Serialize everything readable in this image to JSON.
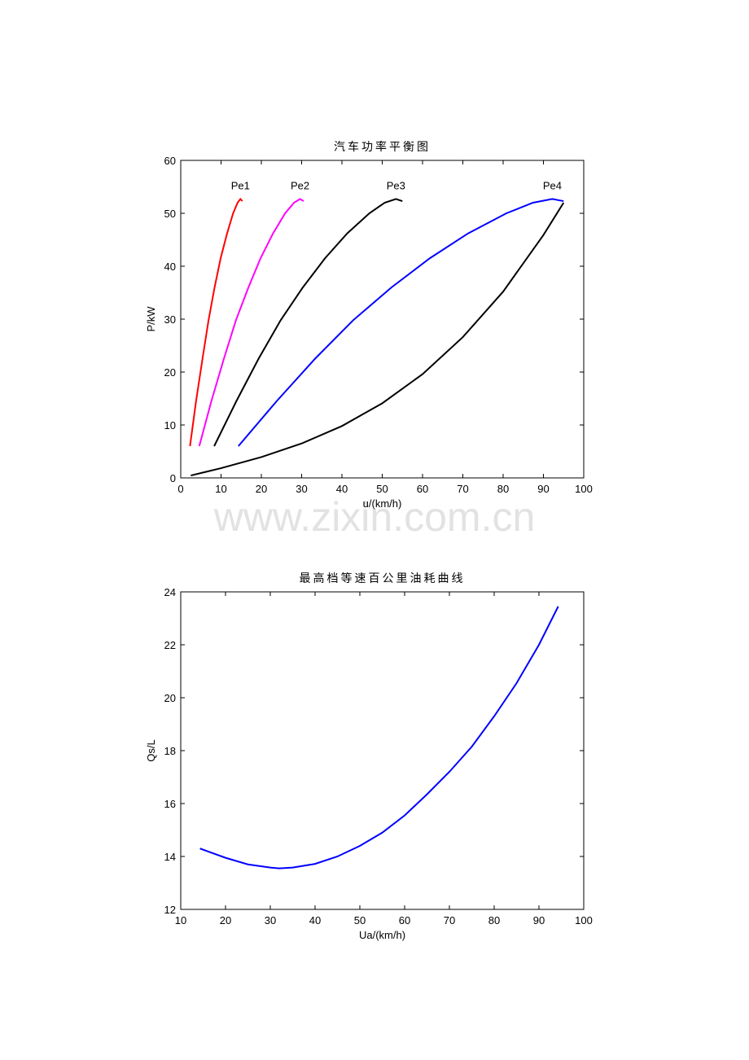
{
  "watermark": "www.zixin.com.cn",
  "chart_data": [
    {
      "type": "line",
      "title": "汽车功率平衡图",
      "x_label": "u/(km/h)",
      "y_label": "P/kW",
      "xlim": [
        0,
        100
      ],
      "xticks": [
        0,
        10,
        20,
        30,
        40,
        50,
        60,
        70,
        80,
        90,
        100
      ],
      "ylim": [
        0,
        60
      ],
      "yticks": [
        0,
        10,
        20,
        30,
        40,
        50,
        60
      ],
      "series": [
        {
          "name": "Pe1",
          "color": "#ff0000",
          "x": [
            2.3,
            3.8,
            5.4,
            6.9,
            8.4,
            9.9,
            11.5,
            13.0,
            14.1,
            14.8,
            15.3
          ],
          "values": [
            6,
            14.5,
            22.5,
            29.8,
            36,
            41.5,
            46.2,
            50,
            52,
            52.7,
            52.3
          ]
        },
        {
          "name": "Pe2",
          "color": "#ff00ff",
          "x": [
            4.6,
            7.6,
            10.7,
            13.7,
            16.8,
            19.8,
            22.9,
            25.9,
            28.1,
            29.6,
            30.5
          ],
          "values": [
            6,
            14.5,
            22.5,
            29.8,
            36,
            41.5,
            46.2,
            50,
            52,
            52.7,
            52.3
          ]
        },
        {
          "name": "Pe3",
          "color": "#000000",
          "x": [
            8.3,
            13.8,
            19.3,
            24.8,
            30.3,
            35.8,
            41.3,
            46.8,
            50.6,
            53.4,
            55.0
          ],
          "values": [
            6,
            14.5,
            22.5,
            29.8,
            36,
            41.5,
            46.2,
            50,
            52,
            52.7,
            52.3
          ]
        },
        {
          "name": "Pe4",
          "color": "#0000ff",
          "x": [
            14.3,
            23.8,
            33.3,
            42.8,
            52.3,
            61.8,
            71.3,
            80.8,
            87.4,
            92.2,
            95.0
          ],
          "values": [
            6,
            14.5,
            22.5,
            29.8,
            36,
            41.5,
            46.2,
            50,
            52,
            52.7,
            52.3
          ]
        },
        {
          "color": "#000000",
          "x": [
            2.5,
            10,
            20,
            30,
            40,
            50,
            60,
            70,
            80,
            90,
            95
          ],
          "values": [
            0.45,
            1.84,
            3.93,
            6.5,
            9.8,
            14.1,
            19.6,
            26.6,
            35.2,
            45.9,
            52.0
          ]
        }
      ]
    },
    {
      "type": "line",
      "title": "最高档等速百公里油耗曲线",
      "x_label": "Ua/(km/h)",
      "y_label": "Qs/L",
      "xlim": [
        10,
        100
      ],
      "xticks": [
        10,
        20,
        30,
        40,
        50,
        60,
        70,
        80,
        90,
        100
      ],
      "ylim": [
        12,
        24
      ],
      "yticks": [
        12,
        14,
        16,
        18,
        20,
        22,
        24
      ],
      "series": [
        {
          "color": "#0000ff",
          "x": [
            14.3,
            20,
            25,
            30,
            32,
            35,
            40,
            45,
            50,
            55,
            60,
            65,
            70,
            75,
            80,
            85,
            90,
            94.3
          ],
          "values": [
            14.3,
            13.95,
            13.7,
            13.58,
            13.55,
            13.58,
            13.72,
            14.0,
            14.4,
            14.9,
            15.55,
            16.35,
            17.2,
            18.15,
            19.3,
            20.55,
            22.0,
            23.45
          ]
        }
      ]
    }
  ]
}
